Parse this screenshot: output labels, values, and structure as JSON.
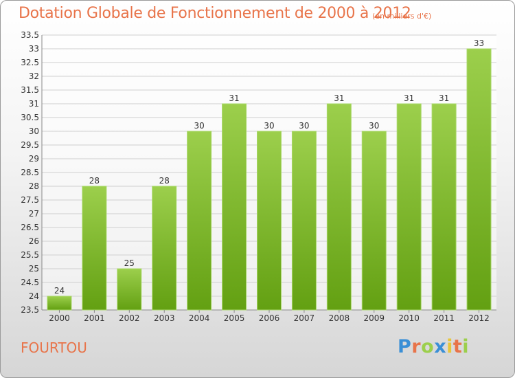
{
  "chart_data": {
    "type": "bar",
    "title": "Dotation Globale de Fonctionnement de 2000 à 2012",
    "subtitle": "(en milliers d'€)",
    "categories": [
      "2000",
      "2001",
      "2002",
      "2003",
      "2004",
      "2005",
      "2006",
      "2007",
      "2008",
      "2009",
      "2010",
      "2011",
      "2012"
    ],
    "values": [
      24,
      28,
      25,
      28,
      30,
      31,
      30,
      30,
      31,
      30,
      31,
      31,
      33
    ],
    "ylim": [
      23.5,
      33.5
    ],
    "yticks": [
      "23.5",
      "24",
      "24.5",
      "25",
      "25.5",
      "26",
      "26.5",
      "27",
      "27.5",
      "28",
      "28.5",
      "29",
      "29.5",
      "30",
      "30.5",
      "31",
      "31.5",
      "32",
      "32.5",
      "33",
      "33.5"
    ],
    "xlabel": "",
    "ylabel": "",
    "grid": true,
    "bar_color_top": "#9ccf4c",
    "bar_color_bottom": "#63a012"
  },
  "footer": {
    "commune": "FOURTOU",
    "brand_letters": [
      "P",
      "r",
      "o",
      "x",
      "i",
      "t",
      "i"
    ],
    "brand_colors": [
      "#3a8fd6",
      "#e8744a",
      "#9ccf4c",
      "#3a8fd6",
      "#e8c63a",
      "#e8744a",
      "#9ccf4c"
    ]
  },
  "colors": {
    "title": "#e8744a",
    "grid": "#cfcfcf"
  }
}
